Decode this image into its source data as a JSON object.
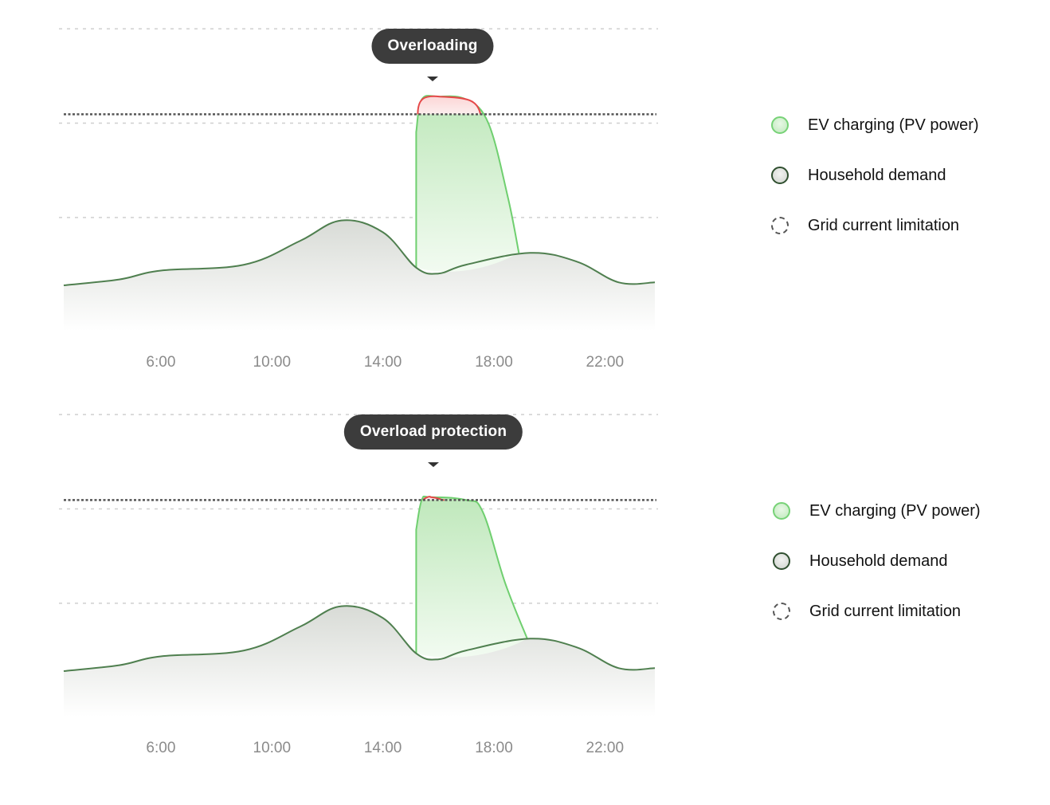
{
  "colors": {
    "ev_stroke": "#6fcf6f",
    "ev_fill": "#bfe8bb",
    "household_stroke": "#4f7f4f",
    "household_fill": "#d8dbd6",
    "overload_stroke": "#e54848",
    "overload_fill": "#fbd6d6",
    "grid_limit": "#555555",
    "gridline": "#cfcfcf",
    "callout_bg": "#3c3c3c"
  },
  "panels": [
    {
      "callout": "Overloading",
      "legend": [
        {
          "label": "EV charging (PV power)",
          "icon": "green-circle-icon"
        },
        {
          "label": "Household demand",
          "icon": "dark-green-circle-icon"
        },
        {
          "label": "Grid current limitation",
          "icon": "dashed-circle-icon"
        }
      ]
    },
    {
      "callout": "Overload protection",
      "legend": [
        {
          "label": "EV charging (PV power)",
          "icon": "green-circle-icon"
        },
        {
          "label": "Household demand",
          "icon": "dark-green-circle-icon"
        },
        {
          "label": "Grid current limitation",
          "icon": "dashed-circle-icon"
        }
      ]
    }
  ],
  "chart_data": [
    {
      "type": "area",
      "x_ticks": [
        "6:00",
        "10:00",
        "14:00",
        "18:00",
        "22:00"
      ],
      "xlim": [
        2.5,
        23.8
      ],
      "ylim": [
        0,
        1
      ],
      "grid": true,
      "grid_limit": 0.68,
      "series": [
        {
          "name": "Household demand",
          "x": [
            2.5,
            4.5,
            6,
            9,
            11,
            12.5,
            14,
            15.2,
            16,
            17,
            19.3,
            21,
            22.5,
            23.8
          ],
          "values": [
            0.1,
            0.12,
            0.15,
            0.17,
            0.25,
            0.32,
            0.28,
            0.16,
            0.14,
            0.17,
            0.21,
            0.18,
            0.11,
            0.11
          ]
        },
        {
          "name": "EV charging (PV power)",
          "x": [
            15.2,
            15.2,
            15.4,
            16,
            17,
            17.8,
            18.5,
            18.9
          ],
          "values": [
            0.16,
            0.62,
            0.73,
            0.74,
            0.73,
            0.65,
            0.4,
            0.21
          ]
        }
      ]
    },
    {
      "type": "area",
      "x_ticks": [
        "6:00",
        "10:00",
        "14:00",
        "18:00",
        "22:00"
      ],
      "xlim": [
        2.5,
        23.8
      ],
      "ylim": [
        0,
        1
      ],
      "grid": true,
      "grid_limit": 0.68,
      "series": [
        {
          "name": "Household demand",
          "x": [
            2.5,
            4.5,
            6,
            9,
            11,
            12.5,
            14,
            15.2,
            16,
            17,
            19.3,
            21,
            22.5,
            23.8
          ],
          "values": [
            0.1,
            0.12,
            0.15,
            0.17,
            0.25,
            0.32,
            0.28,
            0.16,
            0.14,
            0.17,
            0.21,
            0.18,
            0.11,
            0.11
          ]
        },
        {
          "name": "EV charging (PV power)",
          "x": [
            15.2,
            15.2,
            15.4,
            15.7,
            17,
            17.6,
            18.4,
            19.2
          ],
          "values": [
            0.16,
            0.58,
            0.68,
            0.69,
            0.68,
            0.64,
            0.4,
            0.21
          ]
        }
      ]
    }
  ]
}
